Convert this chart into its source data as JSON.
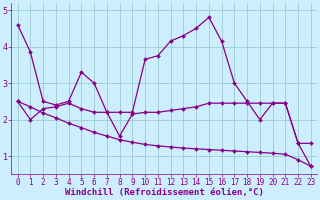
{
  "line1_x": [
    0,
    1,
    2,
    3,
    4,
    5,
    6,
    7,
    8,
    9,
    10,
    11,
    12,
    13,
    14,
    15,
    16,
    17,
    18,
    19,
    20,
    21,
    22,
    23
  ],
  "line1_y": [
    4.6,
    3.85,
    2.5,
    2.4,
    2.5,
    3.3,
    3.0,
    2.2,
    2.2,
    2.2,
    3.65,
    3.75,
    4.15,
    4.3,
    4.5,
    4.8,
    4.15,
    3.0,
    2.5,
    2.0,
    2.45,
    2.45,
    1.35,
    1.35
  ],
  "line2_x": [
    0,
    1,
    2,
    3,
    4,
    5,
    6,
    7,
    8,
    9,
    10,
    11,
    12,
    13,
    14,
    15,
    16,
    17,
    18,
    19,
    20,
    21,
    22,
    23
  ],
  "line2_y": [
    2.5,
    2.0,
    2.3,
    2.35,
    2.45,
    2.3,
    2.2,
    2.2,
    1.55,
    2.15,
    2.2,
    2.2,
    2.25,
    2.3,
    2.35,
    2.45,
    2.45,
    2.45,
    2.45,
    2.45,
    2.45,
    2.45,
    1.35,
    0.72
  ],
  "line3_x": [
    0,
    1,
    2,
    3,
    4,
    5,
    6,
    7,
    8,
    9,
    10,
    11,
    12,
    13,
    14,
    15,
    16,
    17,
    18,
    19,
    20,
    21,
    22,
    23
  ],
  "line3_y": [
    2.5,
    2.35,
    2.18,
    2.05,
    1.9,
    1.78,
    1.65,
    1.55,
    1.45,
    1.38,
    1.32,
    1.28,
    1.25,
    1.22,
    1.2,
    1.18,
    1.16,
    1.14,
    1.12,
    1.1,
    1.08,
    1.05,
    0.9,
    0.72
  ],
  "line_color": "#880088",
  "bg_color": "#cceeff",
  "grid_color": "#99cccc",
  "xlabel": "Windchill (Refroidissement éolien,°C)",
  "ylim": [
    0.5,
    5.2
  ],
  "xlim": [
    -0.5,
    23.5
  ],
  "yticks": [
    1,
    2,
    3,
    4,
    5
  ],
  "xticks": [
    0,
    1,
    2,
    3,
    4,
    5,
    6,
    7,
    8,
    9,
    10,
    11,
    12,
    13,
    14,
    15,
    16,
    17,
    18,
    19,
    20,
    21,
    22,
    23
  ],
  "tick_fontsize": 5.5,
  "xlabel_fontsize": 6.5
}
